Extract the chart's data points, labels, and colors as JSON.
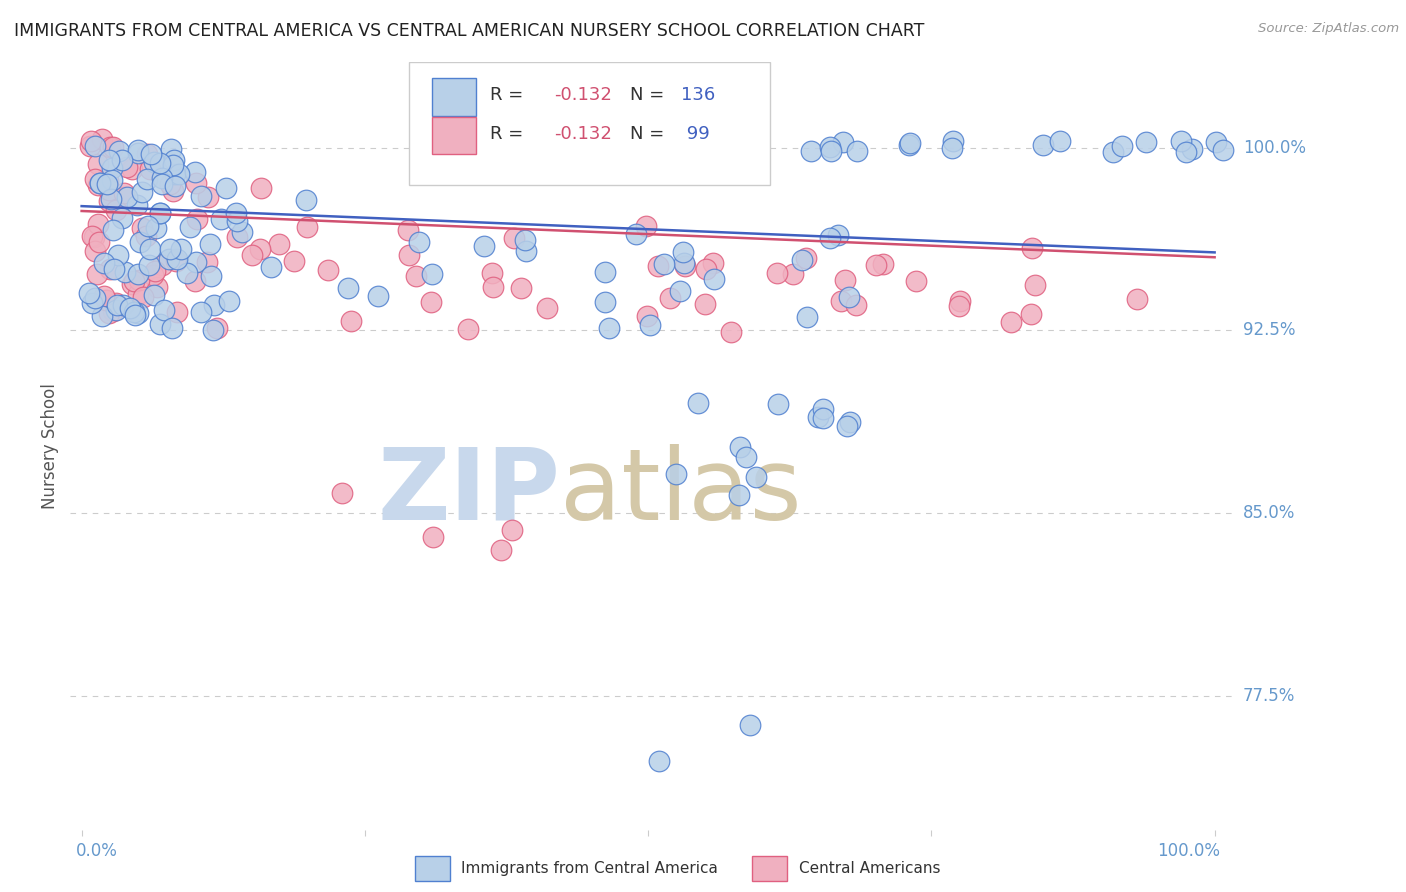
{
  "title": "IMMIGRANTS FROM CENTRAL AMERICA VS CENTRAL AMERICAN NURSERY SCHOOL CORRELATION CHART",
  "source": "Source: ZipAtlas.com",
  "ylabel": "Nursery School",
  "ytick_labels": [
    "100.0%",
    "92.5%",
    "85.0%",
    "77.5%"
  ],
  "ytick_values": [
    1.0,
    0.925,
    0.85,
    0.775
  ],
  "xlim": [
    -0.01,
    1.02
  ],
  "ylim": [
    0.72,
    1.035
  ],
  "legend_blue_R": "R = ",
  "legend_blue_R_val": "-0.132",
  "legend_blue_N": "N = ",
  "legend_blue_N_val": "136",
  "legend_pink_R": "R = ",
  "legend_pink_R_val": "-0.132",
  "legend_pink_N": "N = ",
  "legend_pink_N_val": " 99",
  "legend_blue_label": "Immigrants from Central America",
  "legend_pink_label": "Central Americans",
  "blue_face": "#b8d0e8",
  "pink_face": "#f0b0c0",
  "blue_edge": "#5080d0",
  "pink_edge": "#e06080",
  "blue_trend": "#4060c0",
  "pink_trend": "#d05070",
  "grid_color": "#cccccc",
  "ylabel_color": "#555555",
  "axis_tick_color": "#6699cc",
  "title_color": "#222222",
  "source_color": "#999999",
  "wm_zip_color": "#c8d8ec",
  "wm_atlas_color": "#d4c8a8",
  "trend_blue_x0": 0.0,
  "trend_blue_y0": 0.976,
  "trend_blue_x1": 1.0,
  "trend_blue_y1": 0.957,
  "trend_pink_x0": 0.0,
  "trend_pink_y0": 0.974,
  "trend_pink_x1": 1.0,
  "trend_pink_y1": 0.955
}
